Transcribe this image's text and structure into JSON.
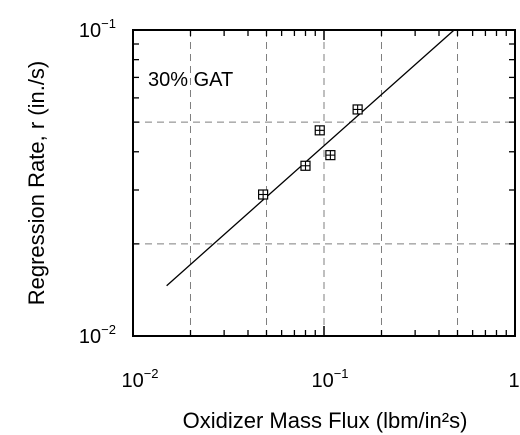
{
  "chart_data": {
    "type": "scatter",
    "xlabel": "Oxidizer Mass Flux (lbm/in²s)",
    "ylabel": "Regression Rate, r (in./s)",
    "annotation": "30% GAT",
    "x_scale": "log",
    "y_scale": "log",
    "xlim": [
      0.01,
      1
    ],
    "ylim": [
      0.01,
      0.1
    ],
    "grid": true,
    "x_gridlines": [
      0.02,
      0.05,
      0.1,
      0.2,
      0.5
    ],
    "y_gridlines": [
      0.02,
      0.05
    ],
    "x_tick_labels": [
      {
        "base": "10",
        "exp": "−2",
        "value": 0.01
      },
      {
        "base": "10",
        "exp": "−1",
        "value": 0.1
      },
      {
        "base": "1",
        "exp": "",
        "value": 1
      }
    ],
    "y_tick_labels": [
      {
        "base": "10",
        "exp": "−1",
        "value": 0.1
      },
      {
        "base": "10",
        "exp": "−2",
        "value": 0.01
      }
    ],
    "points": [
      {
        "x": 0.048,
        "y": 0.029
      },
      {
        "x": 0.08,
        "y": 0.036
      },
      {
        "x": 0.095,
        "y": 0.047
      },
      {
        "x": 0.108,
        "y": 0.039
      },
      {
        "x": 0.15,
        "y": 0.055
      }
    ],
    "fit_line": {
      "x": [
        0.015,
        0.48
      ],
      "y": [
        0.0146,
        0.1
      ]
    },
    "marker": "boxed-plus",
    "colors": {
      "line": "#000000",
      "grid": "#7f7f7f",
      "background": "#ffffff"
    }
  }
}
